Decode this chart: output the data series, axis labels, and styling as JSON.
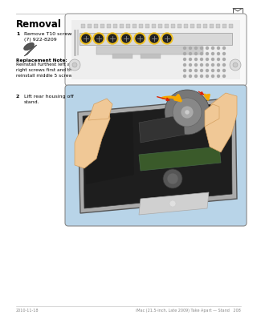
{
  "page_bg": "#ffffff",
  "header_line_color": "#bbbbbb",
  "footer_line_color": "#bbbbbb",
  "title": "Removal",
  "title_fontsize": 8.5,
  "step1_num": "1",
  "step1_text": "Remove T10 screws:\n(7) 922-8209",
  "step1_fontsize": 4.5,
  "replacement_note_label": "Replacement Note:",
  "replacement_note_text": "Reinstall furthest left and\nright screws first and then\nreinstall middle 5 screws.",
  "replacement_note_fontsize": 4.2,
  "step2_num": "2",
  "step2_text": "Lift rear housing off\nstand.",
  "step2_fontsize": 4.5,
  "footer_left": "2010-11-18",
  "footer_right": "iMac (21.5-inch, Late 2009) Take Apart — Stand   208",
  "footer_fontsize": 3.5,
  "box1_facecolor": "#f8f8f8",
  "box1_border": "#999999",
  "box2_facecolor": "#b8d4e8",
  "box2_border": "#888888",
  "screw_highlight": "#f0c020",
  "screw_dark": "#222222",
  "arrow_orange": "#f5a800",
  "arrow_red": "#dd2200",
  "diagram_line": "#aaaaaa",
  "diagram_bg": "#f0f0f0",
  "connector_bg": "#e0e0e0",
  "tooth_color": "#cccccc",
  "imac_silver": "#c8c8c8",
  "imac_dark": "#1e1e1e",
  "imac_inner": "#282828",
  "hand_skin": "#f0c896",
  "hand_edge": "#d4a060",
  "hand_shadow": "#e0b070",
  "board_green": "#3a5a2a",
  "fan_gray": "#888888",
  "chin_silver": "#d0d0d0"
}
